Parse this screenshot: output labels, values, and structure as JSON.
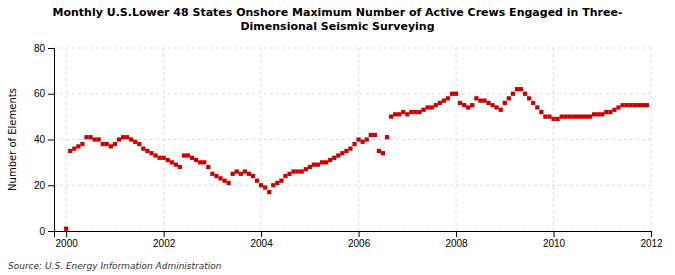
{
  "chart_data": {
    "type": "scatter",
    "title": "Monthly U.S.Lower 48 States Onshore Maximum Number of Active Crews Engaged in Three-\nDimensional Seismic Surveying",
    "ylabel": "Number of Elements",
    "source": "Source: U.S. Energy Information Administration",
    "color": "#cc0000",
    "marker": "square",
    "grid": true,
    "xlim": [
      1999.75,
      2012.0
    ],
    "xticks": [
      2000,
      2002,
      2004,
      2006,
      2008,
      2010,
      2012
    ],
    "ylim": [
      0,
      80
    ],
    "yticks": [
      0,
      20,
      40,
      60,
      80
    ],
    "x": [
      2000.0,
      2000.083,
      2000.167,
      2000.25,
      2000.333,
      2000.417,
      2000.5,
      2000.583,
      2000.667,
      2000.75,
      2000.833,
      2000.917,
      2001.0,
      2001.083,
      2001.167,
      2001.25,
      2001.333,
      2001.417,
      2001.5,
      2001.583,
      2001.667,
      2001.75,
      2001.833,
      2001.917,
      2002.0,
      2002.083,
      2002.167,
      2002.25,
      2002.333,
      2002.417,
      2002.5,
      2002.583,
      2002.667,
      2002.75,
      2002.833,
      2002.917,
      2003.0,
      2003.083,
      2003.167,
      2003.25,
      2003.333,
      2003.417,
      2003.5,
      2003.583,
      2003.667,
      2003.75,
      2003.833,
      2003.917,
      2004.0,
      2004.083,
      2004.167,
      2004.25,
      2004.333,
      2004.417,
      2004.5,
      2004.583,
      2004.667,
      2004.75,
      2004.833,
      2004.917,
      2005.0,
      2005.083,
      2005.167,
      2005.25,
      2005.333,
      2005.417,
      2005.5,
      2005.583,
      2005.667,
      2005.75,
      2005.833,
      2005.917,
      2006.0,
      2006.083,
      2006.167,
      2006.25,
      2006.333,
      2006.417,
      2006.5,
      2006.583,
      2006.667,
      2006.75,
      2006.833,
      2006.917,
      2007.0,
      2007.083,
      2007.167,
      2007.25,
      2007.333,
      2007.417,
      2007.5,
      2007.583,
      2007.667,
      2007.75,
      2007.833,
      2007.917,
      2008.0,
      2008.083,
      2008.167,
      2008.25,
      2008.333,
      2008.417,
      2008.5,
      2008.583,
      2008.667,
      2008.75,
      2008.833,
      2008.917,
      2009.0,
      2009.083,
      2009.167,
      2009.25,
      2009.333,
      2009.417,
      2009.5,
      2009.583,
      2009.667,
      2009.75,
      2009.833,
      2009.917,
      2010.0,
      2010.083,
      2010.167,
      2010.25,
      2010.333,
      2010.417,
      2010.5,
      2010.583,
      2010.667,
      2010.75,
      2010.833,
      2010.917,
      2011.0,
      2011.083,
      2011.167,
      2011.25,
      2011.333,
      2011.417,
      2011.5,
      2011.583,
      2011.667,
      2011.75,
      2011.833,
      2011.917
    ],
    "values": [
      1,
      35,
      36,
      37,
      38,
      41,
      41,
      40,
      40,
      38,
      38,
      37,
      38,
      40,
      41,
      41,
      40,
      39,
      38,
      36,
      35,
      34,
      33,
      32,
      32,
      31,
      30,
      29,
      28,
      33,
      33,
      32,
      31,
      30,
      30,
      28,
      25,
      24,
      23,
      22,
      21,
      25,
      26,
      25,
      26,
      25,
      24,
      22,
      20,
      19,
      17,
      20,
      21,
      22,
      24,
      25,
      26,
      26,
      26,
      27,
      28,
      29,
      29,
      30,
      30,
      31,
      32,
      33,
      34,
      35,
      36,
      38,
      40,
      39,
      40,
      42,
      42,
      35,
      34,
      41,
      50,
      51,
      51,
      52,
      51,
      52,
      52,
      52,
      53,
      54,
      54,
      55,
      56,
      57,
      58,
      60,
      60,
      56,
      55,
      54,
      55,
      58,
      57,
      57,
      56,
      55,
      54,
      53,
      56,
      58,
      60,
      62,
      62,
      60,
      58,
      56,
      54,
      52,
      50,
      50,
      49,
      49,
      50,
      50,
      50,
      50,
      50,
      50,
      50,
      50,
      51,
      51,
      51,
      52,
      52,
      53,
      54,
      55,
      55,
      55,
      55,
      55,
      55,
      55
    ]
  }
}
